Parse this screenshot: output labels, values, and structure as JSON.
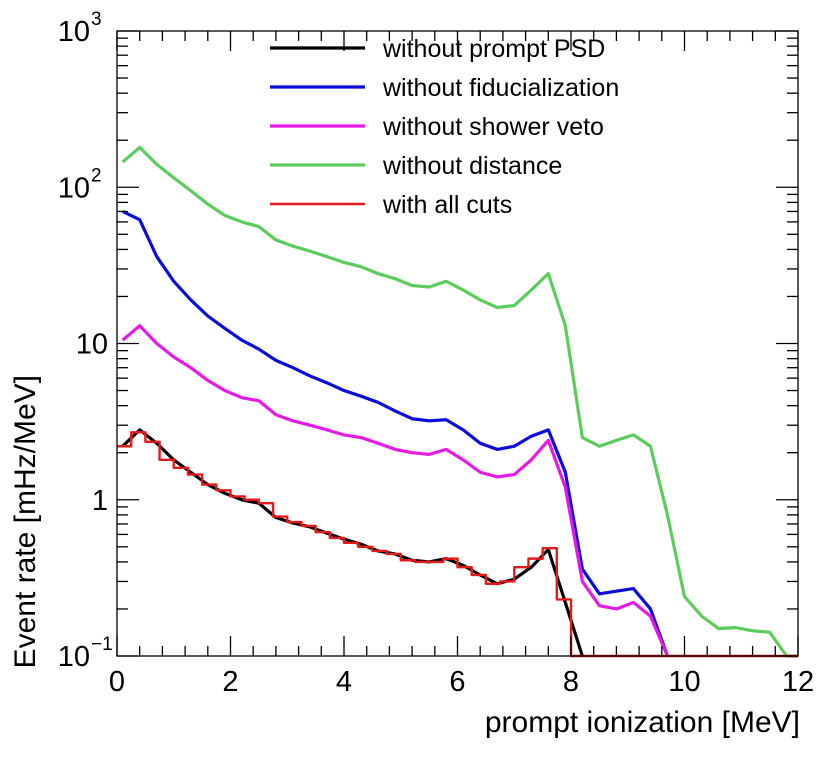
{
  "chart_data": {
    "type": "line",
    "title": "",
    "xlabel": "prompt ionization [MeV]",
    "ylabel": "Event rate [mHz/MeV]",
    "xlim": [
      0,
      12
    ],
    "ylim": [
      0.1,
      1000
    ],
    "yscale": "log",
    "legend_position": "top-center",
    "x_ticks": [
      {
        "value": 0,
        "label": "0"
      },
      {
        "value": 2,
        "label": "2"
      },
      {
        "value": 4,
        "label": "4"
      },
      {
        "value": 6,
        "label": "6"
      },
      {
        "value": 8,
        "label": "8"
      },
      {
        "value": 10,
        "label": "10"
      },
      {
        "value": 12,
        "label": "12"
      }
    ],
    "y_ticks": [
      {
        "value": 0.1,
        "base": "10",
        "exp": "−1"
      },
      {
        "value": 1,
        "base": "1",
        "exp": ""
      },
      {
        "value": 10,
        "base": "10",
        "exp": ""
      },
      {
        "value": 100,
        "base": "10",
        "exp": "2"
      },
      {
        "value": 1000,
        "base": "10",
        "exp": "3"
      }
    ],
    "series": [
      {
        "name": "without distance",
        "color": "#5ccc5c",
        "style": "line",
        "x": [
          0.1,
          0.4,
          0.7,
          1.0,
          1.3,
          1.6,
          1.9,
          2.2,
          2.5,
          2.8,
          3.1,
          3.4,
          3.7,
          4.0,
          4.3,
          4.6,
          4.9,
          5.2,
          5.5,
          5.8,
          6.1,
          6.4,
          6.7,
          7.0,
          7.3,
          7.6,
          7.9,
          8.2,
          8.5,
          8.8,
          9.1,
          9.4,
          9.7,
          10.0,
          10.3,
          10.6,
          10.9,
          11.2,
          11.5,
          11.8,
          12.0
        ],
        "values": [
          145,
          180,
          140,
          115,
          95,
          78,
          66,
          60,
          56,
          46,
          42,
          39,
          36,
          33,
          31,
          28,
          26,
          23.5,
          23,
          25,
          22,
          19,
          17,
          17.5,
          22,
          28,
          13,
          2.5,
          2.2,
          2.4,
          2.6,
          2.2,
          0.8,
          0.24,
          0.18,
          0.15,
          0.152,
          0.145,
          0.142,
          0.1,
          0.1
        ]
      },
      {
        "name": "without fiducialization",
        "color": "#0b0bdc",
        "style": "line",
        "x": [
          0.1,
          0.4,
          0.7,
          1.0,
          1.3,
          1.6,
          1.9,
          2.2,
          2.5,
          2.8,
          3.1,
          3.4,
          3.7,
          4.0,
          4.3,
          4.6,
          4.9,
          5.2,
          5.5,
          5.8,
          6.1,
          6.4,
          6.7,
          7.0,
          7.3,
          7.6,
          7.9,
          8.2,
          8.5,
          8.8,
          9.1,
          9.4,
          9.7
        ],
        "values": [
          70,
          62,
          36,
          25,
          19,
          15,
          12.5,
          10.5,
          9.2,
          7.8,
          7.0,
          6.2,
          5.6,
          5.0,
          4.6,
          4.2,
          3.7,
          3.3,
          3.2,
          3.25,
          2.8,
          2.3,
          2.1,
          2.2,
          2.55,
          2.8,
          1.5,
          0.36,
          0.25,
          0.26,
          0.27,
          0.2,
          0.1
        ]
      },
      {
        "name": "without shower veto",
        "color": "#e619e6",
        "style": "line",
        "x": [
          0.1,
          0.4,
          0.7,
          1.0,
          1.3,
          1.6,
          1.9,
          2.2,
          2.5,
          2.8,
          3.1,
          3.4,
          3.7,
          4.0,
          4.3,
          4.6,
          4.9,
          5.2,
          5.5,
          5.8,
          6.1,
          6.4,
          6.7,
          7.0,
          7.3,
          7.6,
          7.9,
          8.2,
          8.5,
          8.8,
          9.1,
          9.4,
          9.7
        ],
        "values": [
          10.5,
          13,
          10,
          8.2,
          7.0,
          5.8,
          5.0,
          4.5,
          4.3,
          3.5,
          3.2,
          3.0,
          2.8,
          2.6,
          2.5,
          2.3,
          2.1,
          2.0,
          1.95,
          2.1,
          1.8,
          1.5,
          1.4,
          1.45,
          1.8,
          2.4,
          1.2,
          0.3,
          0.21,
          0.2,
          0.22,
          0.18,
          0.1
        ]
      },
      {
        "name": "without prompt PSD",
        "color": "#000000",
        "style": "line",
        "x": [
          0.1,
          0.4,
          0.7,
          1.0,
          1.3,
          1.6,
          1.9,
          2.2,
          2.5,
          2.8,
          3.1,
          3.4,
          3.7,
          4.0,
          4.3,
          4.6,
          4.9,
          5.2,
          5.5,
          5.8,
          6.1,
          6.4,
          6.7,
          7.0,
          7.3,
          7.6,
          7.9,
          8.2
        ],
        "values": [
          2.2,
          2.8,
          2.3,
          1.8,
          1.5,
          1.25,
          1.1,
          1.0,
          0.95,
          0.77,
          0.71,
          0.67,
          0.61,
          0.56,
          0.52,
          0.47,
          0.45,
          0.41,
          0.4,
          0.42,
          0.38,
          0.33,
          0.29,
          0.31,
          0.37,
          0.48,
          0.22,
          0.1
        ]
      },
      {
        "name": "with all cuts",
        "color": "#e61a1a",
        "style": "step",
        "x": [
          0,
          0.25,
          0.5,
          0.75,
          1.0,
          1.25,
          1.5,
          1.75,
          2.0,
          2.25,
          2.5,
          2.75,
          3.0,
          3.25,
          3.5,
          3.75,
          4.0,
          4.25,
          4.5,
          4.75,
          5.0,
          5.25,
          5.5,
          5.75,
          6.0,
          6.25,
          6.5,
          6.75,
          7.0,
          7.25,
          7.5,
          7.75,
          8.0,
          8.25,
          8.5,
          8.75,
          9.0,
          9.25,
          9.5,
          9.75,
          10.0,
          10.25,
          10.5,
          10.75,
          11.0,
          11.25,
          11.5,
          11.75
        ],
        "values": [
          2.2,
          2.7,
          2.35,
          1.8,
          1.6,
          1.45,
          1.25,
          1.15,
          1.05,
          1.0,
          0.95,
          0.78,
          0.72,
          0.68,
          0.62,
          0.57,
          0.53,
          0.5,
          0.47,
          0.45,
          0.41,
          0.4,
          0.4,
          0.42,
          0.37,
          0.33,
          0.29,
          0.3,
          0.37,
          0.42,
          0.49,
          0.23,
          0.1,
          0.1,
          0.1,
          0.1,
          0.1,
          0.1,
          0.1,
          0.1,
          0.1,
          0.1,
          0.1,
          0.1,
          0.1,
          0.1,
          0.1,
          0.1
        ]
      }
    ],
    "legend_order": [
      "without prompt PSD",
      "without fiducialization",
      "without shower veto",
      "without distance",
      "with all cuts"
    ]
  }
}
